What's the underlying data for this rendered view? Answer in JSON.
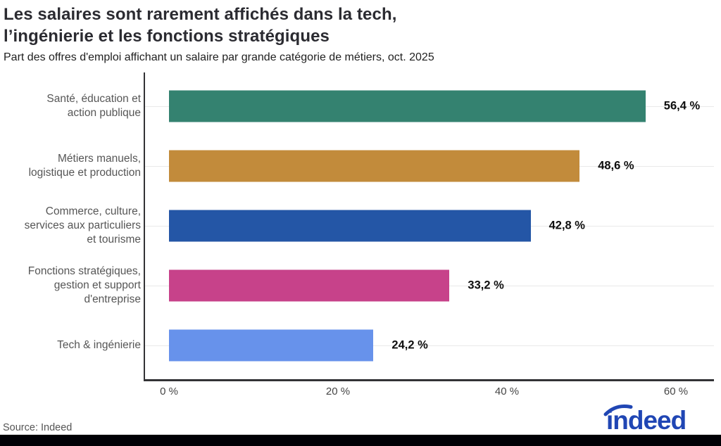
{
  "header": {
    "title_line1": "Les salaires sont rarement affichés dans la tech,",
    "title_line2": "l’ingénierie et les fonctions stratégiques",
    "subtitle": "Part des offres d'emploi affichant un salaire par grande catégorie de métiers, oct. 2025"
  },
  "chart_data": {
    "type": "bar",
    "orientation": "horizontal",
    "title": "Les salaires sont rarement affichés dans la tech, l’ingénierie et les fonctions stratégiques",
    "subtitle": "Part des offres d'emploi affichant un salaire par grande catégorie de métiers, oct. 2025",
    "categories": [
      [
        "Santé, éducation et",
        "action publique"
      ],
      [
        "Métiers manuels,",
        "logistique et production"
      ],
      [
        "Commerce, culture,",
        "services aux particuliers",
        "et tourisme"
      ],
      [
        "Fonctions stratégiques,",
        "gestion et support",
        "d'entreprise"
      ],
      [
        "Tech & ingénierie"
      ]
    ],
    "values": [
      56.4,
      48.6,
      42.8,
      33.2,
      24.2
    ],
    "value_labels": [
      "56,4 %",
      "48,6 %",
      "42,8 %",
      "33,2 %",
      "24,2 %"
    ],
    "bar_colors": [
      "#348270",
      "#c28b3b",
      "#2456a6",
      "#c7428a",
      "#6792eb"
    ],
    "x_tick_labels": [
      "0 %",
      "20 %",
      "40 %",
      "60 %"
    ],
    "x_tick_values": [
      0,
      20,
      40,
      60
    ],
    "xlim": [
      0,
      64.5
    ],
    "grid": true,
    "unit": "%",
    "legend": null
  },
  "footer": {
    "source": "Source: Indeed",
    "logo_text": "indeed"
  },
  "colors": {
    "axis": "#333336",
    "gridline": "#e9e9e9",
    "category_text": "#565656",
    "brand_blue": "#2046b4",
    "bottom_strip": "#000005"
  }
}
